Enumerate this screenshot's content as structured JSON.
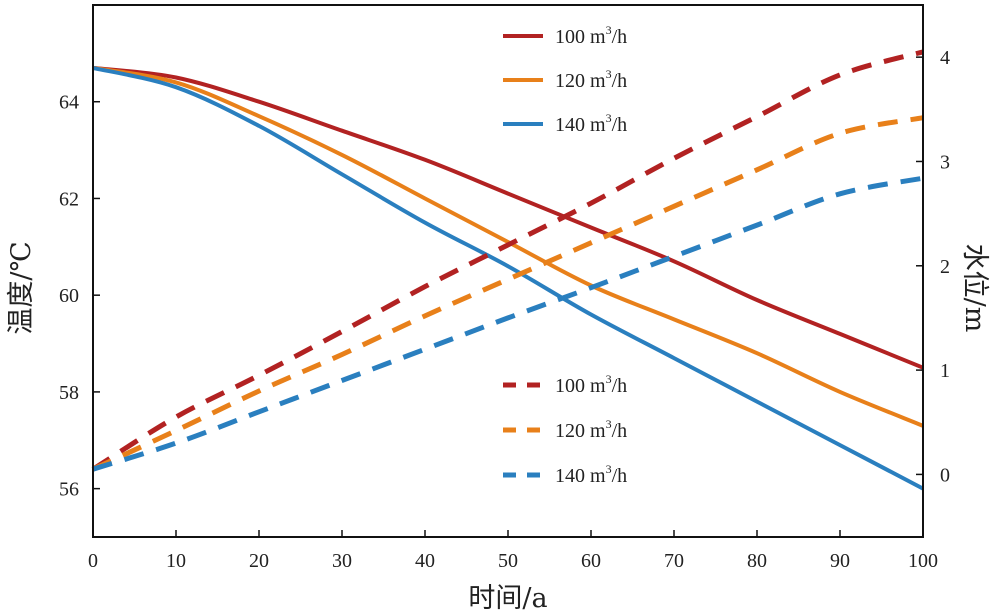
{
  "chart_data": {
    "type": "line",
    "xlabel": "时间/a",
    "ylabel_left": "温度/℃",
    "ylabel_right": "水位/m",
    "xlim": [
      0,
      100
    ],
    "ylim_left": [
      55,
      66
    ],
    "ylim_right": [
      -0.6,
      4.5
    ],
    "x_ticks": [
      "0",
      "10",
      "20",
      "30",
      "40",
      "50",
      "60",
      "70",
      "80",
      "90",
      "100"
    ],
    "y_left_ticks": [
      "56",
      "58",
      "60",
      "62",
      "64"
    ],
    "y_right_ticks": [
      "0",
      "1",
      "2",
      "3",
      "4"
    ],
    "grid": false,
    "legend_solid_position": "top-center",
    "legend_dashed_position": "bottom-center",
    "x": [
      0,
      10,
      20,
      30,
      40,
      50,
      60,
      70,
      80,
      90,
      100
    ],
    "series": [
      {
        "name": "100 m³/h",
        "label_main": "100 m",
        "label_sup": "3",
        "label_unit": "/h",
        "axis": "left",
        "style": "solid",
        "color": "#b22222",
        "values": [
          64.7,
          64.5,
          64.0,
          63.4,
          62.8,
          62.1,
          61.4,
          60.7,
          59.9,
          59.2,
          58.5
        ]
      },
      {
        "name": "120 m³/h",
        "label_main": "120 m",
        "label_sup": "3",
        "label_unit": "/h",
        "axis": "left",
        "style": "solid",
        "color": "#e8801a",
        "values": [
          64.7,
          64.4,
          63.7,
          62.9,
          62.0,
          61.1,
          60.2,
          59.5,
          58.8,
          58.0,
          57.3
        ]
      },
      {
        "name": "140 m³/h",
        "label_main": "140 m",
        "label_sup": "3",
        "label_unit": "/h",
        "axis": "left",
        "style": "solid",
        "color": "#2a7fbf",
        "values": [
          64.7,
          64.3,
          63.5,
          62.5,
          61.5,
          60.6,
          59.6,
          58.7,
          57.8,
          56.9,
          56.0
        ]
      },
      {
        "name": "100 m³/h",
        "label_main": "100 m",
        "label_sup": "3",
        "label_unit": "/h",
        "axis": "right",
        "style": "dashed",
        "color": "#b22222",
        "values": [
          0.05,
          0.55,
          0.95,
          1.37,
          1.8,
          2.2,
          2.6,
          3.03,
          3.43,
          3.83,
          4.05
        ]
      },
      {
        "name": "120 m³/h",
        "label_main": "120 m",
        "label_sup": "3",
        "label_unit": "/h",
        "axis": "right",
        "style": "dashed",
        "color": "#e8801a",
        "values": [
          0.05,
          0.42,
          0.8,
          1.15,
          1.52,
          1.87,
          2.22,
          2.57,
          2.92,
          3.27,
          3.42
        ]
      },
      {
        "name": "140 m³/h",
        "label_main": "140 m",
        "label_sup": "3",
        "label_unit": "/h",
        "axis": "right",
        "style": "dashed",
        "color": "#2a7fbf",
        "values": [
          0.05,
          0.3,
          0.6,
          0.9,
          1.2,
          1.5,
          1.79,
          2.09,
          2.39,
          2.69,
          2.84
        ]
      }
    ]
  }
}
